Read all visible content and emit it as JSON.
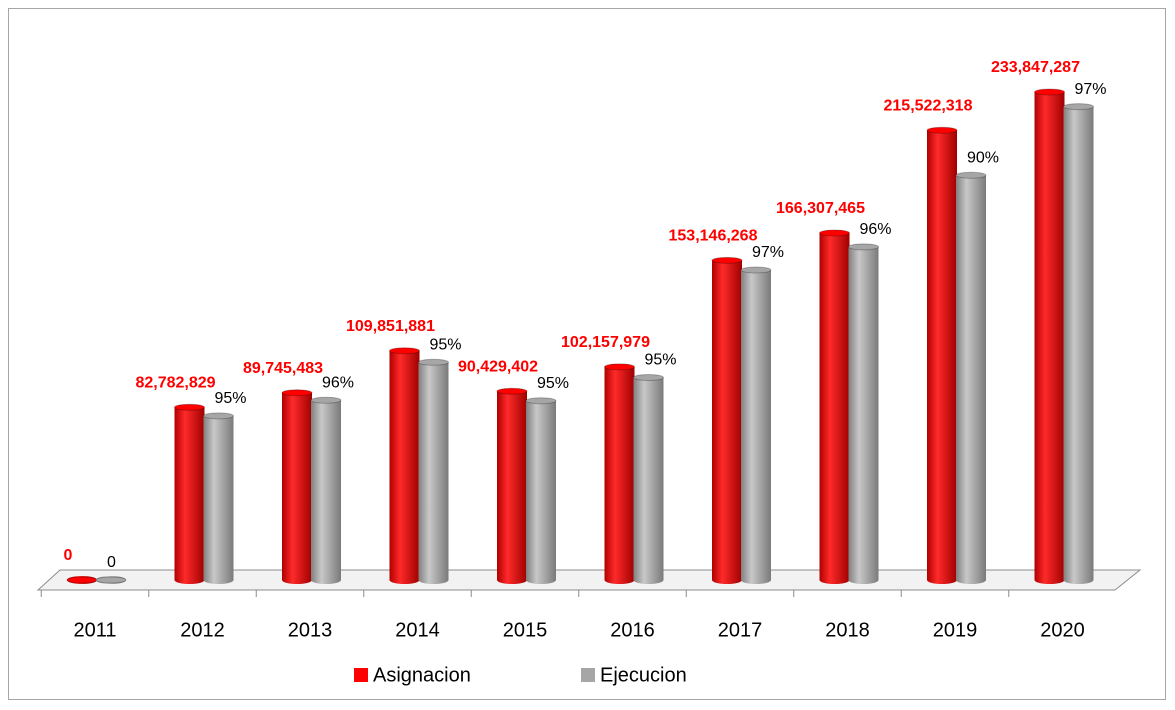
{
  "chart_data": {
    "type": "bar3d",
    "categories": [
      "2011",
      "2012",
      "2013",
      "2014",
      "2015",
      "2016",
      "2017",
      "2018",
      "2019",
      "2020"
    ],
    "series": [
      {
        "name": "Asignacion",
        "color": "#ff0000",
        "values": [
          0,
          82782829,
          89745483,
          109851881,
          90429402,
          102157979,
          153146268,
          166307465,
          215522318,
          233847287
        ],
        "value_labels": [
          "0",
          "82,782,829",
          "89,745,483",
          "109,851,881",
          "90,429,402",
          "102,157,979",
          "153,146,268",
          "166,307,465",
          "215,522,318",
          "233,847,287"
        ]
      },
      {
        "name": "Ejecucion",
        "color": "#a6a6a6",
        "values": [
          0,
          95,
          96,
          95,
          95,
          95,
          97,
          96,
          90,
          97
        ],
        "value_labels": [
          "0",
          "95%",
          "96%",
          "95%",
          "95%",
          "95%",
          "97%",
          "96%",
          "90%",
          "97%"
        ]
      }
    ],
    "legend": "bottom"
  }
}
